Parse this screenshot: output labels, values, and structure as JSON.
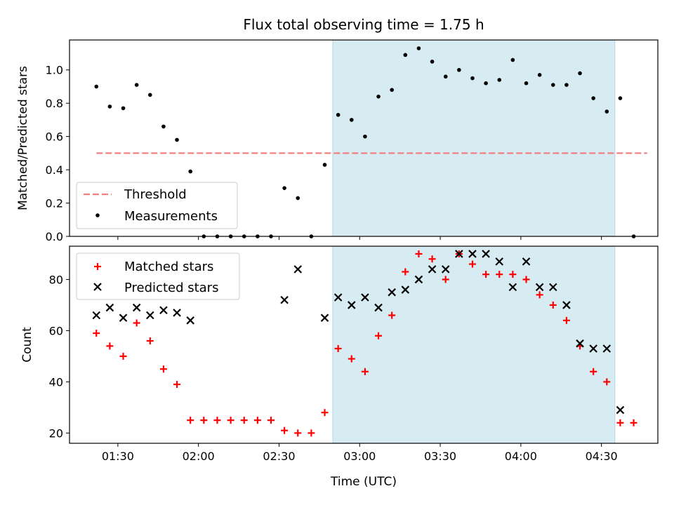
{
  "chart_data": {
    "type": "scatter",
    "title": "Flux total observing time = 1.75 h",
    "xlabel": "Time (UTC)",
    "x_ticks": [
      "01:30",
      "02:00",
      "02:30",
      "03:00",
      "03:30",
      "04:00",
      "04:30"
    ],
    "x_tick_minutes": [
      90,
      120,
      150,
      180,
      210,
      240,
      270
    ],
    "xlim_minutes": [
      72,
      291
    ],
    "highlight_span_minutes": [
      170,
      275
    ],
    "highlight_color": "#add8e6",
    "panels": [
      {
        "ylabel": "Matched/Predicted stars",
        "ylim": [
          0,
          1.18
        ],
        "y_ticks": [
          0.0,
          0.2,
          0.4,
          0.6,
          0.8,
          1.0
        ],
        "y_tick_labels": [
          "0.0",
          "0.2",
          "0.4",
          "0.6",
          "0.8",
          "1.0"
        ],
        "threshold": {
          "name": "Threshold",
          "value": 0.5,
          "x_range_minutes": [
            82,
            287
          ],
          "color": "#f08080"
        },
        "series": [
          {
            "name": "Measurements",
            "color": "#000000",
            "marker": "dot",
            "x_minutes": [
              82,
              87,
              92,
              97,
              102,
              107,
              112,
              117,
              122,
              127,
              132,
              137,
              142,
              147,
              152,
              157,
              162,
              167,
              172,
              177,
              182,
              187,
              192,
              197,
              202,
              207,
              212,
              217,
              222,
              227,
              232,
              237,
              242,
              247,
              252,
              257,
              262,
              267,
              272,
              277,
              282
            ],
            "y": [
              0.9,
              0.78,
              0.77,
              0.91,
              0.85,
              0.66,
              0.58,
              0.39,
              0,
              0,
              0,
              0,
              0,
              0,
              0.29,
              0.23,
              0,
              0.43,
              0.73,
              0.7,
              0.6,
              0.84,
              0.88,
              1.09,
              1.13,
              1.05,
              0.96,
              1.0,
              0.95,
              0.92,
              0.94,
              1.06,
              0.92,
              0.97,
              0.91,
              0.91,
              0.98,
              0.83,
              0.75,
              0.83,
              0
            ]
          }
        ],
        "legend_position": "lower-left"
      },
      {
        "ylabel": "Count",
        "ylim": [
          16,
          93
        ],
        "y_ticks": [
          20,
          40,
          60,
          80
        ],
        "y_tick_labels": [
          "20",
          "40",
          "60",
          "80"
        ],
        "series": [
          {
            "name": "Matched stars",
            "color": "#ff0000",
            "marker": "plus",
            "x_minutes": [
              82,
              87,
              92,
              97,
              102,
              107,
              112,
              117,
              122,
              127,
              132,
              137,
              142,
              147,
              152,
              157,
              162,
              167,
              172,
              177,
              182,
              187,
              192,
              197,
              202,
              207,
              212,
              217,
              222,
              227,
              232,
              237,
              242,
              247,
              252,
              257,
              262,
              267,
              272,
              277,
              282
            ],
            "y": [
              59,
              54,
              50,
              63,
              56,
              45,
              39,
              25,
              25,
              25,
              25,
              25,
              25,
              25,
              21,
              20,
              20,
              28,
              53,
              49,
              44,
              58,
              66,
              83,
              90,
              88,
              80,
              90,
              86,
              82,
              82,
              82,
              80,
              74,
              70,
              64,
              54,
              44,
              40,
              24,
              24
            ]
          },
          {
            "name": "Predicted stars",
            "color": "#000000",
            "marker": "x",
            "x_minutes": [
              82,
              87,
              92,
              97,
              102,
              107,
              112,
              117,
              152,
              157,
              167,
              172,
              177,
              182,
              187,
              192,
              197,
              202,
              207,
              212,
              217,
              222,
              227,
              232,
              237,
              242,
              247,
              252,
              257,
              262,
              267,
              272,
              277
            ],
            "y": [
              66,
              69,
              65,
              69,
              66,
              68,
              67,
              64,
              72,
              84,
              65,
              73,
              70,
              73,
              69,
              75,
              76,
              80,
              84,
              84,
              90,
              90,
              90,
              87,
              77,
              87,
              77,
              77,
              70,
              55,
              53,
              53,
              29
            ]
          }
        ],
        "legend_position": "upper-left"
      }
    ]
  }
}
